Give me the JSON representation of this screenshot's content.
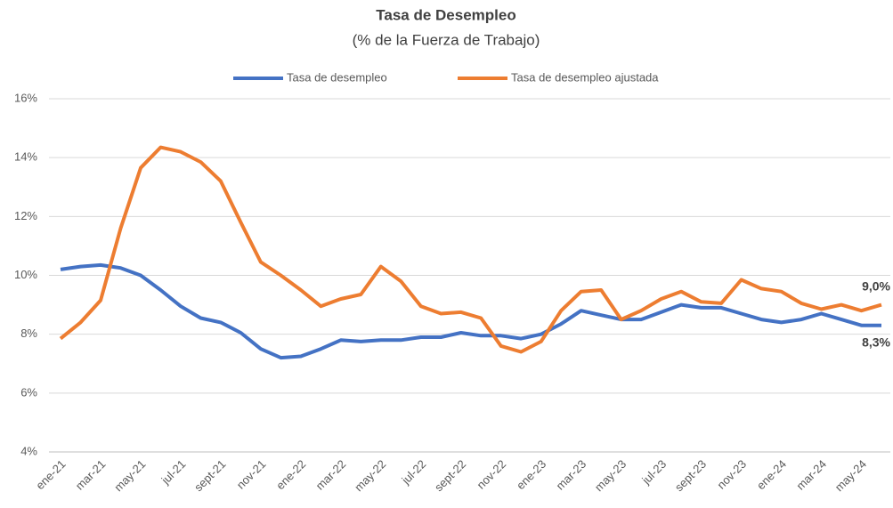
{
  "chart_data": {
    "type": "line",
    "title": "Tasa de Desempleo",
    "subtitle": "(% de la Fuerza de Trabajo)",
    "categories": [
      "ene-21",
      null,
      "mar-21",
      null,
      "may-21",
      null,
      "jul-21",
      null,
      "sept-21",
      null,
      "nov-21",
      null,
      "ene-22",
      null,
      "mar-22",
      null,
      "may-22",
      null,
      "jul-22",
      null,
      "sept-22",
      null,
      "nov-22",
      null,
      "ene-23",
      null,
      "mar-23",
      null,
      "may-23",
      null,
      "jul-23",
      null,
      "sept-23",
      null,
      "nov-23",
      null,
      "ene-24",
      null,
      "mar-24",
      null,
      "may-24",
      null
    ],
    "series": [
      {
        "name": "Tasa de desempleo",
        "color": "#4472c4",
        "values": [
          10.2,
          10.3,
          10.35,
          10.25,
          10.0,
          9.5,
          8.95,
          8.55,
          8.4,
          8.05,
          7.5,
          7.2,
          7.25,
          7.5,
          7.8,
          7.75,
          7.8,
          7.8,
          7.9,
          7.9,
          8.05,
          7.95,
          7.95,
          7.85,
          8.0,
          8.35,
          8.8,
          8.65,
          8.5,
          8.5,
          8.75,
          9.0,
          8.9,
          8.9,
          8.7,
          8.5,
          8.4,
          8.5,
          8.7,
          8.5,
          8.3,
          8.3
        ],
        "value_labels": [
          null,
          null,
          null,
          null,
          null,
          null,
          null,
          null,
          null,
          null,
          null,
          null,
          null,
          null,
          null,
          null,
          null,
          null,
          null,
          null,
          null,
          null,
          null,
          null,
          null,
          null,
          null,
          null,
          null,
          null,
          null,
          null,
          null,
          null,
          null,
          null,
          null,
          null,
          null,
          null,
          null,
          "8,3%"
        ]
      },
      {
        "name": "Tasa de desempleo ajustada",
        "color": "#ed7d31",
        "values": [
          7.85,
          8.4,
          9.15,
          11.6,
          13.65,
          14.35,
          14.2,
          13.85,
          13.2,
          11.8,
          10.45,
          10.0,
          9.5,
          8.95,
          9.2,
          9.35,
          10.3,
          9.8,
          8.95,
          8.7,
          8.75,
          8.55,
          7.6,
          7.4,
          7.75,
          8.8,
          9.45,
          9.5,
          8.5,
          8.8,
          9.2,
          9.45,
          9.1,
          9.05,
          9.85,
          9.55,
          9.45,
          9.05,
          8.85,
          9.0,
          8.8,
          9.0
        ],
        "value_labels": [
          null,
          null,
          null,
          null,
          null,
          null,
          null,
          null,
          null,
          null,
          null,
          null,
          null,
          null,
          null,
          null,
          null,
          null,
          null,
          null,
          null,
          null,
          null,
          null,
          null,
          null,
          null,
          null,
          null,
          null,
          null,
          null,
          null,
          null,
          null,
          null,
          null,
          null,
          null,
          null,
          null,
          "9,0%"
        ]
      }
    ],
    "ylim": [
      4,
      16
    ],
    "yticks": [
      {
        "value": 4,
        "label": "4%"
      },
      {
        "value": 6,
        "label": "6%"
      },
      {
        "value": 8,
        "label": "8%"
      },
      {
        "value": 10,
        "label": "10%"
      },
      {
        "value": 12,
        "label": "12%"
      },
      {
        "value": 14,
        "label": "14%"
      },
      {
        "value": 16,
        "label": "16%"
      }
    ],
    "grid": true,
    "legend": "top"
  }
}
